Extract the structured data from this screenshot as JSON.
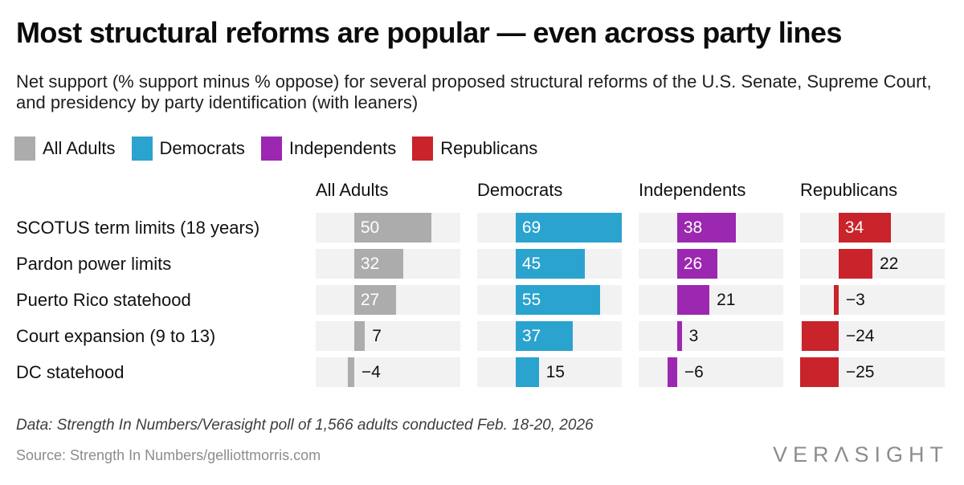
{
  "title": "Most structural reforms are popular — even across party lines",
  "subtitle": "Net support (% support minus % oppose) for several proposed structural reforms of the U.S. Senate, Supreme Court, and presidency by party identification (with leaners)",
  "legend": [
    {
      "label": "All Adults",
      "color": "#acacac"
    },
    {
      "label": "Democrats",
      "color": "#2ba3cf"
    },
    {
      "label": "Independents",
      "color": "#9c27b0"
    },
    {
      "label": "Republicans",
      "color": "#c9232b"
    }
  ],
  "chart_data": {
    "type": "bar",
    "orientation": "horizontal",
    "title": "Net support for structural reforms by party identification",
    "categories": [
      "SCOTUS term limits (18 years)",
      "Pardon power limits",
      "Puerto Rico statehood",
      "Court expansion (9 to 13)",
      "DC statehood"
    ],
    "columns": [
      "All Adults",
      "Democrats",
      "Independents",
      "Republicans"
    ],
    "series": [
      {
        "name": "All Adults",
        "color": "#acacac",
        "values": [
          50,
          32,
          27,
          7,
          -4
        ],
        "labels": [
          "50",
          "32",
          "27",
          "7",
          "−4"
        ],
        "label_inside": [
          true,
          true,
          true,
          false,
          false
        ]
      },
      {
        "name": "Democrats",
        "color": "#2ba3cf",
        "values": [
          69,
          45,
          55,
          37,
          15
        ],
        "labels": [
          "69",
          "45",
          "55",
          "37",
          "15"
        ],
        "label_inside": [
          true,
          true,
          true,
          true,
          false
        ]
      },
      {
        "name": "Independents",
        "color": "#9c27b0",
        "values": [
          38,
          26,
          21,
          3,
          -6
        ],
        "labels": [
          "38",
          "26",
          "21",
          "3",
          "−6"
        ],
        "label_inside": [
          true,
          true,
          false,
          false,
          false
        ]
      },
      {
        "name": "Republicans",
        "color": "#c9232b",
        "values": [
          34,
          22,
          -3,
          -24,
          -25
        ],
        "labels": [
          "34",
          "22",
          "−3",
          "−24",
          "−25"
        ],
        "label_inside": [
          true,
          false,
          false,
          false,
          false
        ]
      }
    ],
    "xlim": [
      -25,
      69
    ],
    "grid": false,
    "legend_position": "top",
    "track_background": "#f2f2f2"
  },
  "footer": {
    "data_note": "Data: Strength In Numbers/Verasight poll of 1,566 adults conducted Feb. 18-20, 2026",
    "source_note": "Source: Strength In Numbers/gelliottmorris.com",
    "logo_text": "VERΛSIGHT"
  }
}
